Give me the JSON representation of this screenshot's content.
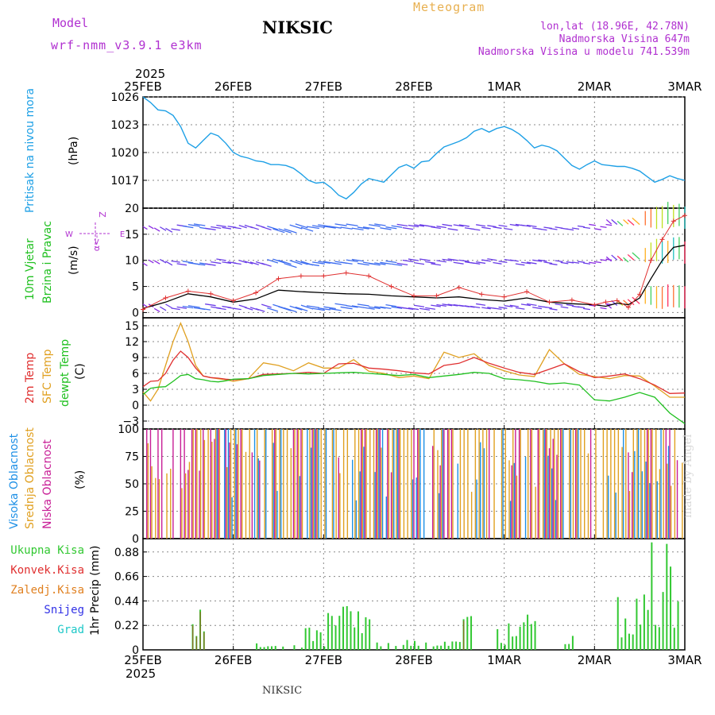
{
  "header": {
    "model_label": "Model",
    "model_name": "wrf-nmm_v3.9.1 e3km",
    "station": "NIKSIC",
    "app_title": "Meteogram",
    "lonlat": "lon,lat (18.96E, 42.78N)",
    "altitude": "Nadmorska Visina 647m",
    "model_altitude": "Nadmorska Visina u modelu 741.539m",
    "footer_station": "NIKSIC",
    "watermark": "made by Angel"
  },
  "colors": {
    "pressure": "#1ea0e6",
    "wind_avg": "#000000",
    "gust": "#e03030",
    "temp2m": "#e03030",
    "sfc": "#e0a020",
    "dew": "#20c020",
    "cloud_high": "#1e90e6",
    "cloud_mid": "#e0a020",
    "cloud_low": "#c81e96",
    "precip_total": "#32c832",
    "precip_conv": "#e03030",
    "precip_frz": "#e08020",
    "snow": "#3232e6",
    "hail": "#1ec8c8"
  },
  "chart_data": {
    "type": "meteogram",
    "x_unit": "hours since 2025-02-25 00UTC",
    "x_range": [
      0,
      144
    ],
    "year_label": "2025",
    "date_ticks": [
      {
        "hour": 0,
        "label": "25FEB"
      },
      {
        "hour": 24,
        "label": "26FEB"
      },
      {
        "hour": 48,
        "label": "27FEB"
      },
      {
        "hour": 72,
        "label": "28FEB"
      },
      {
        "hour": 96,
        "label": "1MAR"
      },
      {
        "hour": 120,
        "label": "2MAR"
      },
      {
        "hour": 144,
        "label": "3MAR"
      }
    ],
    "panels": {
      "pressure": {
        "ylabel": "Pritisak na nivou mora",
        "unit": "(hPa)",
        "ylim": [
          1014,
          1026
        ],
        "ticks": [
          1026,
          1023,
          1020,
          1017
        ],
        "hours": [
          0,
          2,
          4,
          6,
          8,
          10,
          12,
          14,
          16,
          18,
          20,
          22,
          24,
          26,
          28,
          30,
          32,
          34,
          36,
          38,
          40,
          42,
          44,
          46,
          48,
          50,
          52,
          54,
          56,
          58,
          60,
          62,
          64,
          66,
          68,
          70,
          72,
          74,
          76,
          78,
          80,
          82,
          84,
          86,
          88,
          90,
          92,
          94,
          96,
          98,
          100,
          102,
          104,
          106,
          108,
          110,
          112,
          114,
          116,
          118,
          120,
          122,
          124,
          126,
          128,
          130,
          132,
          134,
          136,
          138,
          140,
          142,
          144
        ],
        "values": [
          1026.0,
          1025.4,
          1024.6,
          1024.5,
          1024.0,
          1022.8,
          1021.0,
          1020.5,
          1021.3,
          1022.1,
          1021.8,
          1021.0,
          1020.0,
          1019.6,
          1019.4,
          1019.1,
          1019.0,
          1018.7,
          1018.7,
          1018.6,
          1018.3,
          1017.7,
          1017.0,
          1016.7,
          1016.8,
          1016.2,
          1015.4,
          1015.0,
          1015.7,
          1016.6,
          1017.2,
          1017.0,
          1016.8,
          1017.6,
          1018.4,
          1018.7,
          1018.3,
          1019.0,
          1019.1,
          1019.9,
          1020.6,
          1020.9,
          1021.2,
          1021.6,
          1022.3,
          1022.6,
          1022.2,
          1022.6,
          1022.8,
          1022.5,
          1022.0,
          1021.3,
          1020.5,
          1020.8,
          1020.6,
          1020.2,
          1019.4,
          1018.6,
          1018.2,
          1018.7,
          1019.1,
          1018.7,
          1018.6,
          1018.5,
          1018.5,
          1018.3,
          1018.0,
          1017.4,
          1016.8,
          1017.1,
          1017.5,
          1017.2,
          1017.0
        ]
      },
      "wind": {
        "ylabel": "10m Vjetar",
        "ylabel2": "Brzina i Pravac",
        "unit": "(m/s)",
        "ylim": [
          -1,
          20
        ],
        "ticks": [
          20,
          15,
          10,
          5,
          0
        ],
        "compass_labels": {
          "north": "Z",
          "south": "α<-",
          "west": "W",
          "east": "E"
        },
        "levels": [
          1.2,
          9.8,
          16.5
        ],
        "hours": [
          0,
          6,
          12,
          18,
          24,
          30,
          36,
          42,
          48,
          54,
          60,
          66,
          72,
          78,
          84,
          90,
          96,
          102,
          108,
          114,
          120,
          123,
          126,
          129,
          132,
          135,
          138,
          141,
          144
        ],
        "speed_avg": [
          0.8,
          2.0,
          3.6,
          3.0,
          2.0,
          2.6,
          4.3,
          4.0,
          3.8,
          3.6,
          3.5,
          3.2,
          3.0,
          2.8,
          3.0,
          2.5,
          2.2,
          2.8,
          2.0,
          1.7,
          1.5,
          1.2,
          1.8,
          1.5,
          2.8,
          6.5,
          10.0,
          12.5,
          12.9
        ],
        "gust": [
          0.6,
          2.8,
          4.1,
          3.6,
          2.3,
          3.8,
          6.5,
          7.0,
          7.0,
          7.6,
          7.0,
          5.0,
          3.2,
          3.2,
          4.8,
          3.5,
          3.0,
          4.0,
          2.0,
          2.4,
          1.5,
          2.0,
          2.3,
          1.0,
          3.5,
          10.0,
          14.0,
          17.5,
          18.6
        ],
        "direction": [
          "SE",
          "SE",
          "E",
          "E",
          "E",
          "ESE",
          "ESE",
          "ESE",
          "E",
          "E",
          "E",
          "E",
          "E",
          "E",
          "E",
          "E",
          "E",
          "E",
          "E",
          "E",
          "E",
          "E",
          "NW",
          "NW",
          "NW",
          "N",
          "N",
          "N",
          "N"
        ]
      },
      "temperature": {
        "ylabel_temp": "2m Temp",
        "ylabel_sfc": "SFC Temp",
        "ylabel_dew": "dewpt Temp",
        "unit": "(C)",
        "ylim": [
          -4.5,
          16.5
        ],
        "ticks": [
          15,
          12,
          9,
          6,
          3,
          0,
          -3
        ],
        "hours": [
          0,
          2,
          4,
          6,
          8,
          10,
          12,
          14,
          16,
          18,
          20,
          22,
          24,
          28,
          32,
          36,
          40,
          44,
          48,
          52,
          56,
          60,
          64,
          68,
          72,
          76,
          80,
          84,
          88,
          92,
          96,
          100,
          104,
          108,
          112,
          116,
          120,
          124,
          128,
          132,
          136,
          140,
          144
        ],
        "temp2m": [
          3.5,
          4.5,
          4.6,
          6.0,
          8.5,
          10.2,
          9.0,
          7.0,
          5.5,
          5.2,
          5.1,
          4.9,
          4.8,
          5.0,
          5.8,
          5.9,
          6.0,
          6.2,
          6.0,
          7.8,
          7.9,
          7.0,
          6.8,
          6.5,
          6.1,
          5.9,
          7.5,
          7.9,
          9.0,
          7.9,
          7.0,
          6.2,
          5.8,
          6.8,
          7.8,
          6.3,
          5.2,
          5.5,
          5.9,
          5.0,
          3.8,
          2.2,
          2.3
        ],
        "sfc": [
          2.5,
          0.8,
          3.0,
          7.5,
          12.0,
          15.5,
          12.0,
          7.5,
          5.5,
          5.2,
          5.0,
          4.8,
          4.5,
          5.0,
          8.0,
          7.5,
          6.5,
          8.0,
          7.0,
          7.0,
          8.6,
          6.4,
          6.0,
          5.2,
          5.5,
          5.0,
          10.0,
          9.0,
          9.7,
          7.5,
          6.5,
          5.7,
          5.4,
          10.5,
          7.8,
          5.8,
          5.4,
          5.0,
          5.6,
          5.5,
          3.6,
          1.5,
          1.5
        ],
        "dew": [
          2.0,
          3.2,
          3.4,
          3.5,
          4.5,
          5.6,
          5.8,
          5.0,
          4.8,
          4.5,
          4.4,
          4.6,
          4.9,
          5.0,
          5.6,
          5.8,
          6.0,
          5.9,
          6.0,
          6.1,
          6.2,
          6.0,
          5.8,
          5.6,
          5.8,
          5.2,
          5.5,
          5.8,
          6.2,
          6.0,
          5.0,
          4.8,
          4.5,
          4.0,
          4.2,
          3.8,
          1.0,
          0.8,
          1.5,
          2.4,
          1.5,
          -1.5,
          -3.5
        ]
      },
      "clouds": {
        "ylabel_high": "Visoka Oblacnost",
        "ylabel_mid": "Srednja Oblacnost",
        "ylabel_low": "Niska Oblacnost",
        "unit": "(%)",
        "ylim": [
          0,
          100
        ],
        "ticks": [
          100,
          75,
          50,
          25,
          0
        ]
      },
      "precip": {
        "legend": [
          "Ukupna Kisa",
          "Konvek.Kisa",
          "Zaledj.Kisa",
          "Snijeg",
          "Grad"
        ],
        "ylabel": "1hr Precip (mm)",
        "ylim": [
          0,
          1.0
        ],
        "ticks": [
          0.88,
          0.66,
          0.44,
          0.22,
          0
        ],
        "tick_labels": [
          "0.88",
          "0.66",
          "0.44",
          "0.22",
          "0"
        ]
      }
    }
  }
}
